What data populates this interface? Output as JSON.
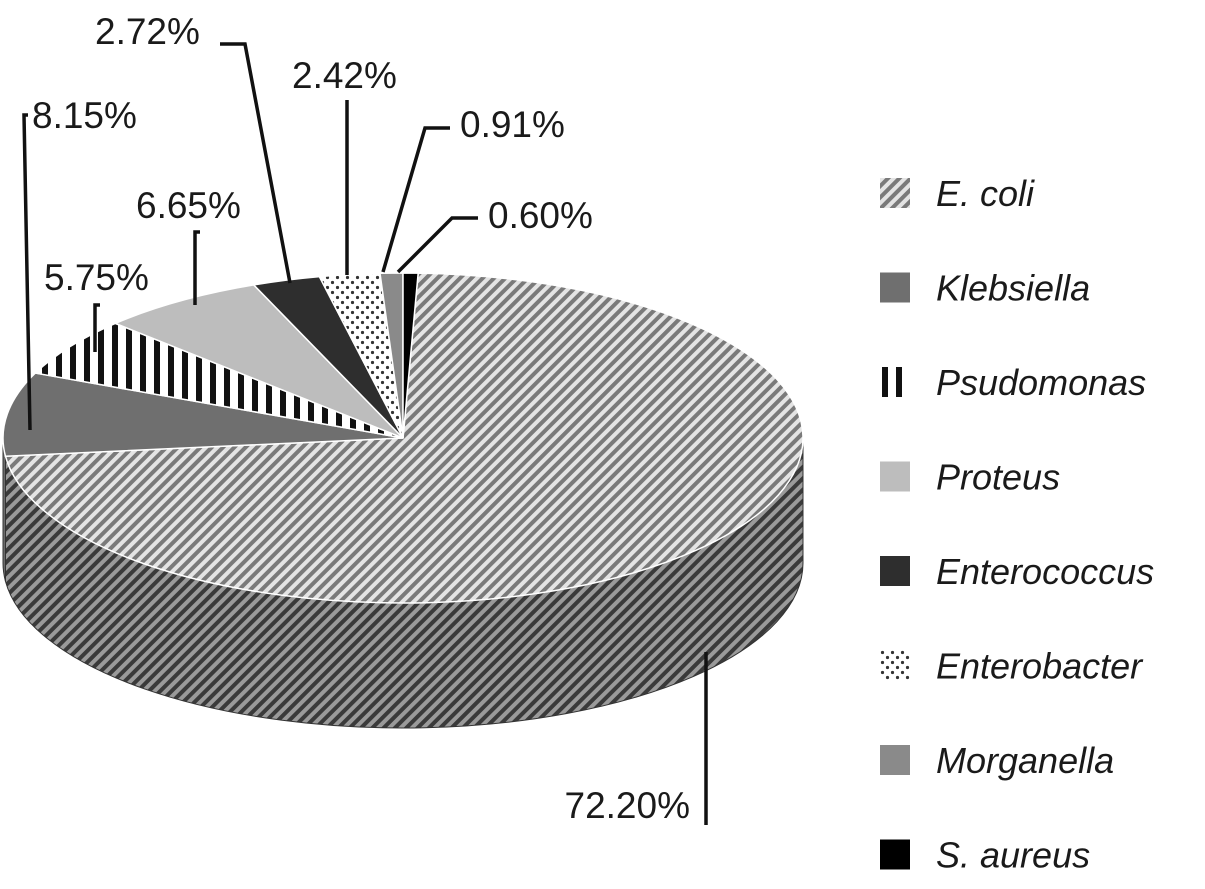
{
  "chart_data": {
    "type": "pie",
    "style": "3d",
    "title": "",
    "categories": [
      "E. coli",
      "Klebsiella",
      "Psudomonas",
      "Proteus",
      "Enterococcus",
      "Enterobacter",
      "Morganella",
      "S. aureus"
    ],
    "values": [
      72.2,
      8.15,
      5.75,
      6.65,
      2.72,
      2.42,
      0.91,
      0.6
    ],
    "labels": [
      "72.20%",
      "8.15%",
      "5.75%",
      "6.65%",
      "2.72%",
      "2.42%",
      "0.91%",
      "0.60%"
    ],
    "legend_position": "right",
    "colors": [
      "#b8b8b8",
      "#6f6f6f",
      "#ffffff",
      "#bdbdbd",
      "#2e2e2e",
      "#ffffff",
      "#8a8a8a",
      "#000000"
    ],
    "patterns": [
      "diagonal-stripes",
      "solid",
      "vertical-stripes",
      "solid",
      "solid",
      "dots",
      "solid",
      "solid"
    ]
  }
}
